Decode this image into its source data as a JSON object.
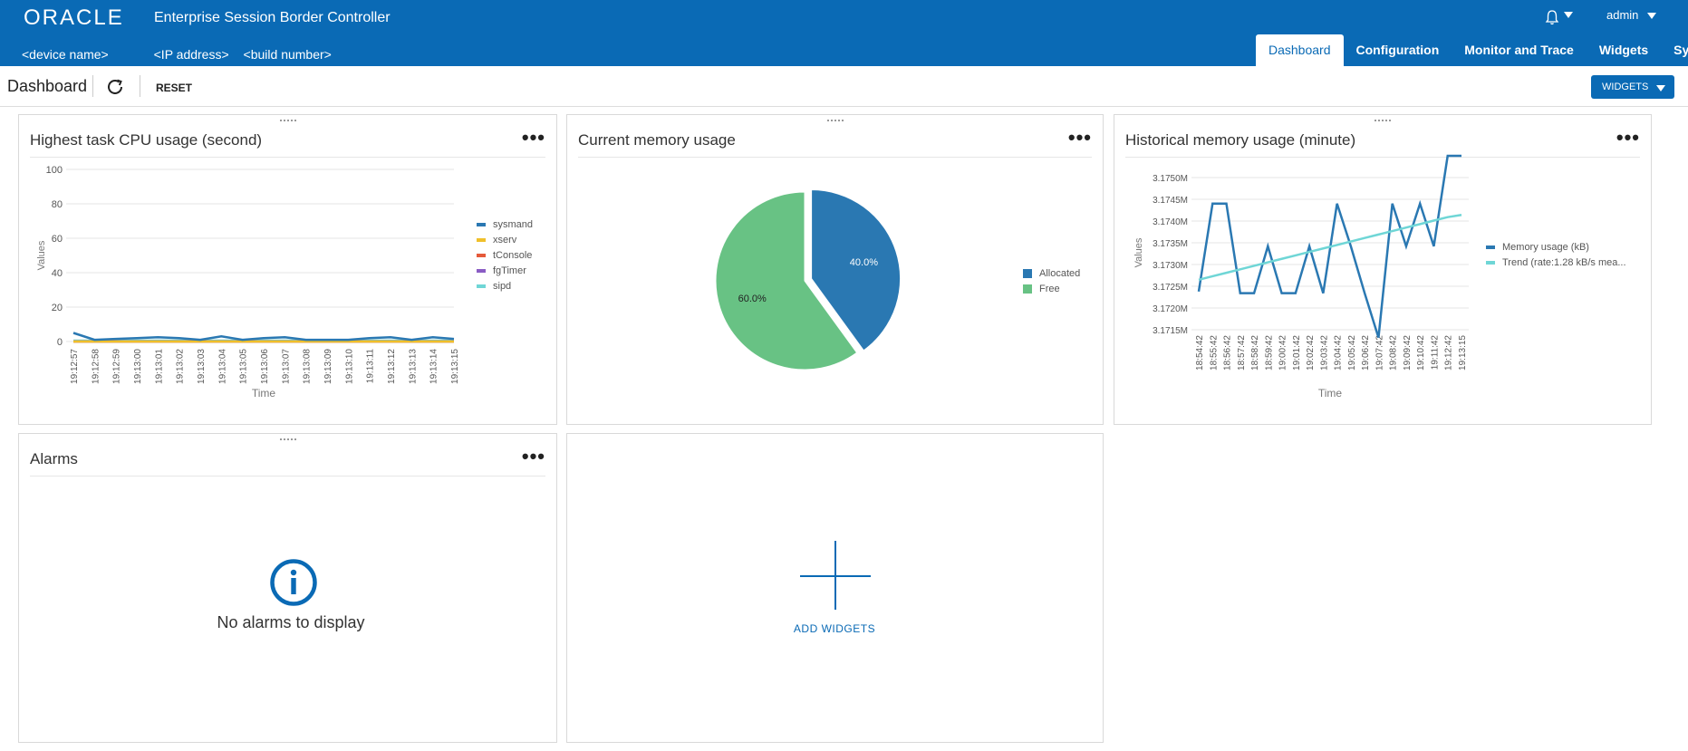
{
  "header": {
    "logo": "ORACLE",
    "product": "Enterprise Session Border Controller",
    "device_name": "<device name>",
    "ip_address": "<IP address>",
    "build_number": "<build number>",
    "bell_icon": "bell-icon",
    "user": "admin",
    "tabs": [
      {
        "label": "Dashboard",
        "active": true
      },
      {
        "label": "Configuration",
        "active": false
      },
      {
        "label": "Monitor and Trace",
        "active": false
      },
      {
        "label": "Widgets",
        "active": false
      },
      {
        "label": "System",
        "active": false
      }
    ],
    "colors": {
      "bar": "#0a6ab5"
    }
  },
  "toolbar": {
    "title": "Dashboard",
    "refresh_icon": "refresh-icon",
    "reset_label": "RESET",
    "widgets_label": "WIDGETS"
  },
  "cards": {
    "cpu": {
      "title": "Highest task CPU usage (second)"
    },
    "memory": {
      "title": "Current memory usage"
    },
    "history": {
      "title": "Historical memory usage (minute)"
    },
    "alarms": {
      "title": "Alarms",
      "empty_text": "No alarms to display",
      "icon": "info-icon"
    },
    "add": {
      "label": "ADD WIDGETS",
      "icon": "plus-icon"
    }
  },
  "chart_data": [
    {
      "type": "line",
      "title": "Highest task CPU usage (second)",
      "xlabel": "Time",
      "ylabel": "Values",
      "ylim": [
        0,
        100
      ],
      "yticks": [
        0,
        20,
        40,
        60,
        80,
        100
      ],
      "x": [
        "19:12:57",
        "19:12:58",
        "19:12:59",
        "19:13:00",
        "19:13:01",
        "19:13:02",
        "19:13:03",
        "19:13:04",
        "19:13:05",
        "19:13:06",
        "19:13:07",
        "19:13:08",
        "19:13:09",
        "19:13:10",
        "19:13:11",
        "19:13:12",
        "19:13:13",
        "19:13:14",
        "19:13:15"
      ],
      "series": [
        {
          "name": "sysmand",
          "color": "#2a78b2",
          "values": [
            5,
            1,
            1.5,
            2,
            2.5,
            2,
            1,
            3,
            1,
            2,
            2.5,
            1,
            1,
            1,
            2,
            2.5,
            1,
            2.5,
            1.5
          ]
        },
        {
          "name": "xserv",
          "color": "#f0c02a",
          "values": [
            0,
            0,
            0,
            0,
            0,
            0,
            0,
            0,
            0,
            0,
            0,
            0,
            0,
            0,
            0,
            0,
            0,
            0,
            0
          ]
        },
        {
          "name": "tConsole",
          "color": "#e55a3a",
          "values": [
            0,
            0,
            0,
            0,
            0,
            0,
            0,
            0,
            0,
            0,
            0,
            0,
            0,
            0,
            0,
            0,
            0,
            0,
            0
          ]
        },
        {
          "name": "fgTimer",
          "color": "#8a5cc4",
          "values": [
            0,
            0,
            0,
            0,
            0,
            0,
            0,
            0,
            0,
            0,
            0,
            0,
            0,
            0,
            0,
            0,
            0,
            0,
            0
          ]
        },
        {
          "name": "sipd",
          "color": "#6fd6d6",
          "values": [
            0.5,
            0.5,
            0.5,
            0.5,
            0.5,
            0.5,
            0.5,
            0.5,
            0.5,
            0.5,
            0.5,
            0.5,
            0.5,
            0.5,
            0.5,
            0.5,
            0.5,
            0.5,
            0.5
          ]
        }
      ],
      "legend": "right",
      "grid": true
    },
    {
      "type": "pie",
      "title": "Current memory usage",
      "categories": [
        "Allocated",
        "Free"
      ],
      "values": [
        40.0,
        60.0
      ],
      "labels": [
        "40.0%",
        "60.0%"
      ],
      "colors": [
        "#2a78b2",
        "#68c284"
      ],
      "legend": "right"
    },
    {
      "type": "line",
      "title": "Historical memory usage (minute)",
      "xlabel": "Time",
      "ylabel": "Values",
      "ylim": [
        3.1715,
        3.1755
      ],
      "yticks": [
        "3.1715M",
        "3.1720M",
        "3.1725M",
        "3.1730M",
        "3.1735M",
        "3.1740M",
        "3.1745M",
        "3.1750M"
      ],
      "x": [
        "18:54:42",
        "18:55:42",
        "18:56:42",
        "18:57:42",
        "18:58:42",
        "18:59:42",
        "19:00:42",
        "19:01:42",
        "19:02:42",
        "19:03:42",
        "19:04:42",
        "19:05:42",
        "19:06:42",
        "19:07:42",
        "19:08:42",
        "19:09:42",
        "19:10:42",
        "19:11:42",
        "19:12:42",
        "19:13:15"
      ],
      "series": [
        {
          "name": "Memory usage (kB)",
          "color": "#2a78b2",
          "values": [
            3.17238,
            3.1744,
            3.1744,
            3.17234,
            3.17234,
            3.17342,
            3.17234,
            3.17234,
            3.17342,
            3.17234,
            3.1744,
            3.17342,
            3.17234,
            3.17132,
            3.1744,
            3.17342,
            3.1744,
            3.17342,
            3.1755,
            3.1755
          ]
        },
        {
          "name": "Trend (rate:1.28 kB/s mea...",
          "color": "#6fd6d6",
          "values": [
            3.17265,
            3.17273,
            3.17281,
            3.17289,
            3.17297,
            3.17305,
            3.17313,
            3.17321,
            3.17329,
            3.17337,
            3.17345,
            3.17353,
            3.17361,
            3.17369,
            3.17377,
            3.17385,
            3.17393,
            3.17401,
            3.17409,
            3.17414
          ]
        }
      ],
      "legend": "right",
      "grid": true
    }
  ]
}
